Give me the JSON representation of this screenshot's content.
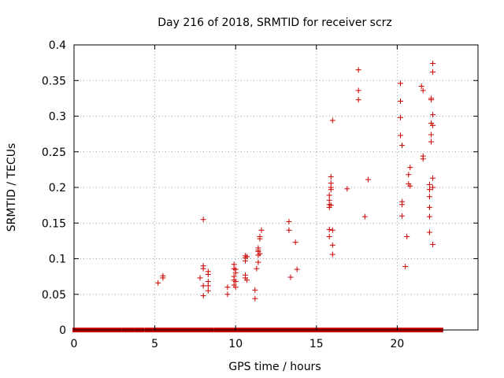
{
  "chart_data": {
    "type": "scatter",
    "title": "Day 216 of 2018, SRMTID for receiver scrz",
    "xlabel": "GPS time / hours",
    "ylabel": "SRMTID / TECUs",
    "xlim": [
      0,
      25
    ],
    "ylim": [
      0,
      0.4
    ],
    "xticks": [
      0,
      5,
      10,
      15,
      20
    ],
    "xtick_labels": [
      "0",
      "5",
      "10",
      "15",
      "20"
    ],
    "yticks": [
      0,
      0.05,
      0.1,
      0.15,
      0.2,
      0.25,
      0.3,
      0.35,
      0.4
    ],
    "ytick_labels": [
      "0",
      "0.05",
      "0.1",
      "0.15",
      "0.2",
      "0.25",
      "0.3",
      "0.35",
      "0.4"
    ],
    "grid": true,
    "marker": "plus",
    "color": "#cc0000",
    "zero_band": [
      [
        0.05,
        2.8
      ],
      [
        3.1,
        3.6
      ],
      [
        3.9,
        4.2
      ],
      [
        4.5,
        8.5
      ],
      [
        8.8,
        22.7
      ]
    ],
    "series": [
      {
        "points": [
          [
            5.2,
            0.066
          ],
          [
            5.5,
            0.073
          ],
          [
            5.5,
            0.076
          ],
          [
            7.8,
            0.073
          ],
          [
            8.0,
            0.155
          ],
          [
            8.0,
            0.048
          ],
          [
            8.0,
            0.062
          ],
          [
            8.0,
            0.086
          ],
          [
            8.0,
            0.09
          ],
          [
            8.3,
            0.055
          ],
          [
            8.3,
            0.062
          ],
          [
            8.3,
            0.068
          ],
          [
            8.3,
            0.078
          ],
          [
            8.3,
            0.082
          ],
          [
            9.5,
            0.05
          ],
          [
            9.5,
            0.06
          ],
          [
            9.9,
            0.092
          ],
          [
            9.9,
            0.086
          ],
          [
            9.9,
            0.075
          ],
          [
            9.9,
            0.07
          ],
          [
            9.9,
            0.063
          ],
          [
            10.0,
            0.06
          ],
          [
            10.0,
            0.068
          ],
          [
            10.0,
            0.08
          ],
          [
            10.0,
            0.085
          ],
          [
            10.6,
            0.073
          ],
          [
            10.6,
            0.077
          ],
          [
            10.6,
            0.097
          ],
          [
            10.6,
            0.101
          ],
          [
            10.6,
            0.104
          ],
          [
            10.7,
            0.07
          ],
          [
            10.7,
            0.103
          ],
          [
            11.2,
            0.044
          ],
          [
            11.2,
            0.056
          ],
          [
            11.3,
            0.086
          ],
          [
            11.4,
            0.095
          ],
          [
            11.4,
            0.105
          ],
          [
            11.4,
            0.11
          ],
          [
            11.4,
            0.112
          ],
          [
            11.4,
            0.115
          ],
          [
            11.5,
            0.107
          ],
          [
            11.5,
            0.128
          ],
          [
            11.5,
            0.131
          ],
          [
            11.6,
            0.14
          ],
          [
            13.3,
            0.152
          ],
          [
            13.3,
            0.14
          ],
          [
            13.4,
            0.074
          ],
          [
            13.7,
            0.123
          ],
          [
            13.8,
            0.085
          ],
          [
            15.8,
            0.189
          ],
          [
            15.8,
            0.182
          ],
          [
            15.8,
            0.176
          ],
          [
            15.8,
            0.172
          ],
          [
            15.8,
            0.141
          ],
          [
            15.8,
            0.131
          ],
          [
            15.9,
            0.215
          ],
          [
            15.9,
            0.206
          ],
          [
            15.9,
            0.2
          ],
          [
            15.9,
            0.197
          ],
          [
            15.9,
            0.175
          ],
          [
            16.0,
            0.294
          ],
          [
            16.0,
            0.14
          ],
          [
            16.0,
            0.119
          ],
          [
            16.0,
            0.106
          ],
          [
            16.9,
            0.198
          ],
          [
            17.6,
            0.365
          ],
          [
            17.6,
            0.336
          ],
          [
            17.6,
            0.323
          ],
          [
            18.0,
            0.159
          ],
          [
            18.2,
            0.211
          ],
          [
            20.2,
            0.346
          ],
          [
            20.2,
            0.321
          ],
          [
            20.2,
            0.298
          ],
          [
            20.2,
            0.273
          ],
          [
            20.3,
            0.18
          ],
          [
            20.3,
            0.176
          ],
          [
            20.3,
            0.16
          ],
          [
            20.3,
            0.259
          ],
          [
            20.5,
            0.089
          ],
          [
            20.6,
            0.131
          ],
          [
            20.7,
            0.218
          ],
          [
            20.7,
            0.205
          ],
          [
            20.8,
            0.228
          ],
          [
            20.8,
            0.202
          ],
          [
            21.5,
            0.342
          ],
          [
            21.6,
            0.336
          ],
          [
            21.6,
            0.244
          ],
          [
            21.6,
            0.24
          ],
          [
            22.0,
            0.204
          ],
          [
            22.0,
            0.197
          ],
          [
            22.0,
            0.187
          ],
          [
            22.0,
            0.172
          ],
          [
            22.0,
            0.159
          ],
          [
            22.0,
            0.137
          ],
          [
            22.1,
            0.325
          ],
          [
            22.1,
            0.323
          ],
          [
            22.1,
            0.29
          ],
          [
            22.1,
            0.274
          ],
          [
            22.1,
            0.264
          ],
          [
            22.2,
            0.374
          ],
          [
            22.2,
            0.362
          ],
          [
            22.2,
            0.302
          ],
          [
            22.2,
            0.287
          ],
          [
            22.2,
            0.213
          ],
          [
            22.2,
            0.2
          ],
          [
            22.2,
            0.12
          ]
        ]
      }
    ]
  }
}
